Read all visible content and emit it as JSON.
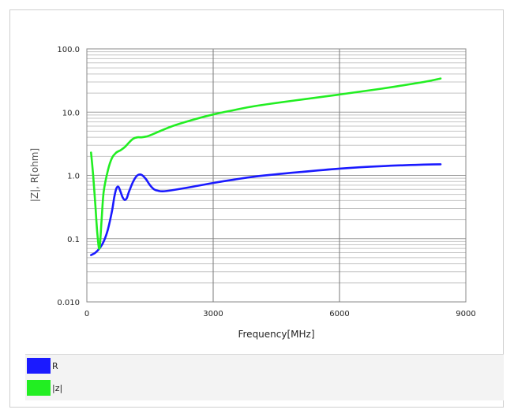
{
  "chart_data": {
    "type": "line",
    "title": "",
    "xlabel": "Frequency[MHz]",
    "ylabel": "|Z|, R[ohm]",
    "xlim": [
      0,
      9000
    ],
    "ylim": [
      0.01,
      100
    ],
    "yscale": "log",
    "grid": true,
    "legend_position": "bottom",
    "x_ticks": [
      0,
      3000,
      6000,
      9000
    ],
    "x_tick_labels": [
      "0",
      "3000",
      "6000",
      "9000"
    ],
    "y_ticks": [
      0.01,
      0.1,
      1,
      10,
      100
    ],
    "y_tick_labels": [
      "0.010",
      "0.1",
      "1.0",
      "10.0",
      "100.0"
    ],
    "series": [
      {
        "name": "R",
        "color": "#1a1aff",
        "x": [
          100,
          200,
          300,
          400,
          500,
          600,
          650,
          700,
          750,
          800,
          850,
          900,
          950,
          1000,
          1100,
          1200,
          1300,
          1400,
          1500,
          1600,
          1700,
          1800,
          2000,
          2500,
          3000,
          3500,
          4000,
          5000,
          6000,
          7000,
          8000,
          8400
        ],
        "values": [
          0.055,
          0.06,
          0.07,
          0.09,
          0.14,
          0.28,
          0.45,
          0.62,
          0.66,
          0.55,
          0.45,
          0.41,
          0.44,
          0.55,
          0.8,
          1.0,
          1.02,
          0.88,
          0.7,
          0.6,
          0.57,
          0.56,
          0.58,
          0.66,
          0.76,
          0.86,
          0.96,
          1.12,
          1.28,
          1.4,
          1.48,
          1.5
        ]
      },
      {
        "name": "|z|",
        "color": "#22ee22",
        "x": [
          100,
          150,
          200,
          250,
          300,
          350,
          400,
          500,
          600,
          700,
          800,
          900,
          1000,
          1100,
          1200,
          1300,
          1400,
          1500,
          2000,
          2500,
          3000,
          3500,
          4000,
          5000,
          6000,
          7000,
          8000,
          8400
        ],
        "values": [
          2.3,
          1.0,
          0.35,
          0.12,
          0.07,
          0.2,
          0.55,
          1.2,
          1.9,
          2.3,
          2.5,
          2.8,
          3.3,
          3.8,
          4.0,
          4.0,
          4.1,
          4.3,
          5.9,
          7.5,
          9.2,
          10.8,
          12.5,
          15.5,
          19.0,
          23.5,
          30.0,
          34.0
        ]
      }
    ]
  }
}
